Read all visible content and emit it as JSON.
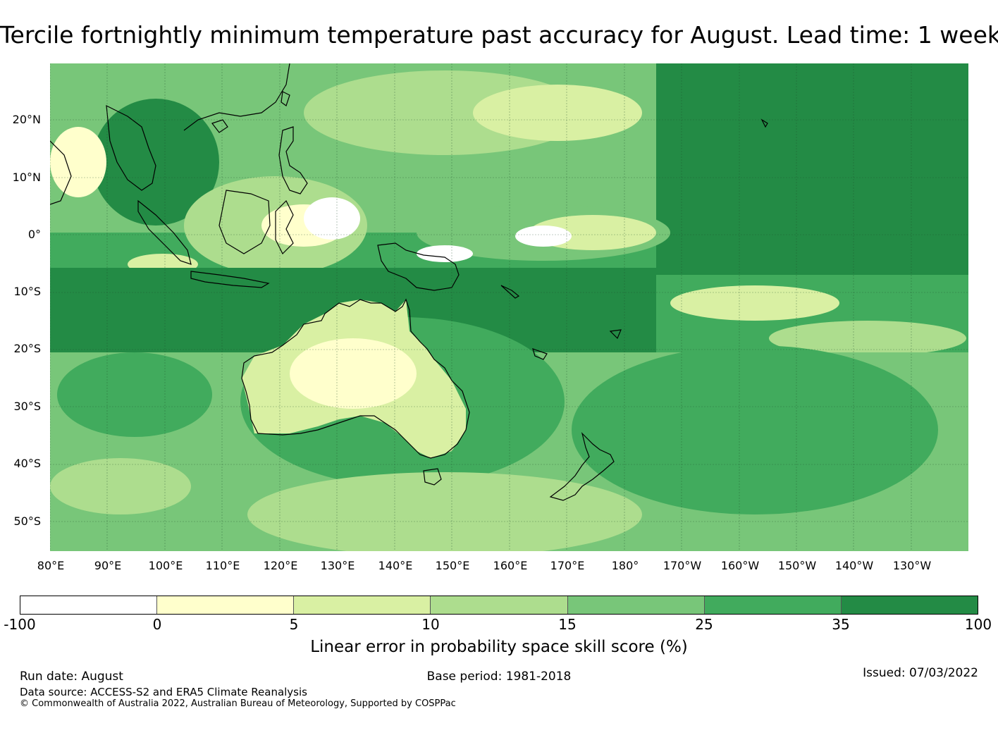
{
  "title": "Tercile fortnightly minimum temperature past accuracy for August. Lead time: 1 week",
  "latitude_labels": [
    "20°N",
    "10°N",
    "0°",
    "10°S",
    "20°S",
    "30°S",
    "40°S",
    "50°S"
  ],
  "longitude_labels": [
    "80°E",
    "90°E",
    "100°E",
    "110°E",
    "120°E",
    "130°E",
    "140°E",
    "150°E",
    "160°E",
    "170°E",
    "180°",
    "170°W",
    "160°W",
    "150°W",
    "140°W",
    "130°W"
  ],
  "colorbar": {
    "ticks": [
      "-100",
      "0",
      "5",
      "10",
      "15",
      "25",
      "35",
      "100"
    ],
    "colors": [
      "#ffffff",
      "#ffffcc",
      "#d9f0a3",
      "#addd8e",
      "#78c679",
      "#41ab5d",
      "#238b45"
    ],
    "label": "Linear error in probability space skill score (%)"
  },
  "footer": {
    "run_date": "Run date: August",
    "base_period": "Base period: 1981-2018",
    "issued": "Issued: 07/03/2022",
    "data_source": "Data source: ACCESS-S2 and ERA5 Climate Reanalysis",
    "copyright": "© Commonwealth of Australia 2022, Australian Bureau of Meteorology, Supported by COSPPac"
  }
}
